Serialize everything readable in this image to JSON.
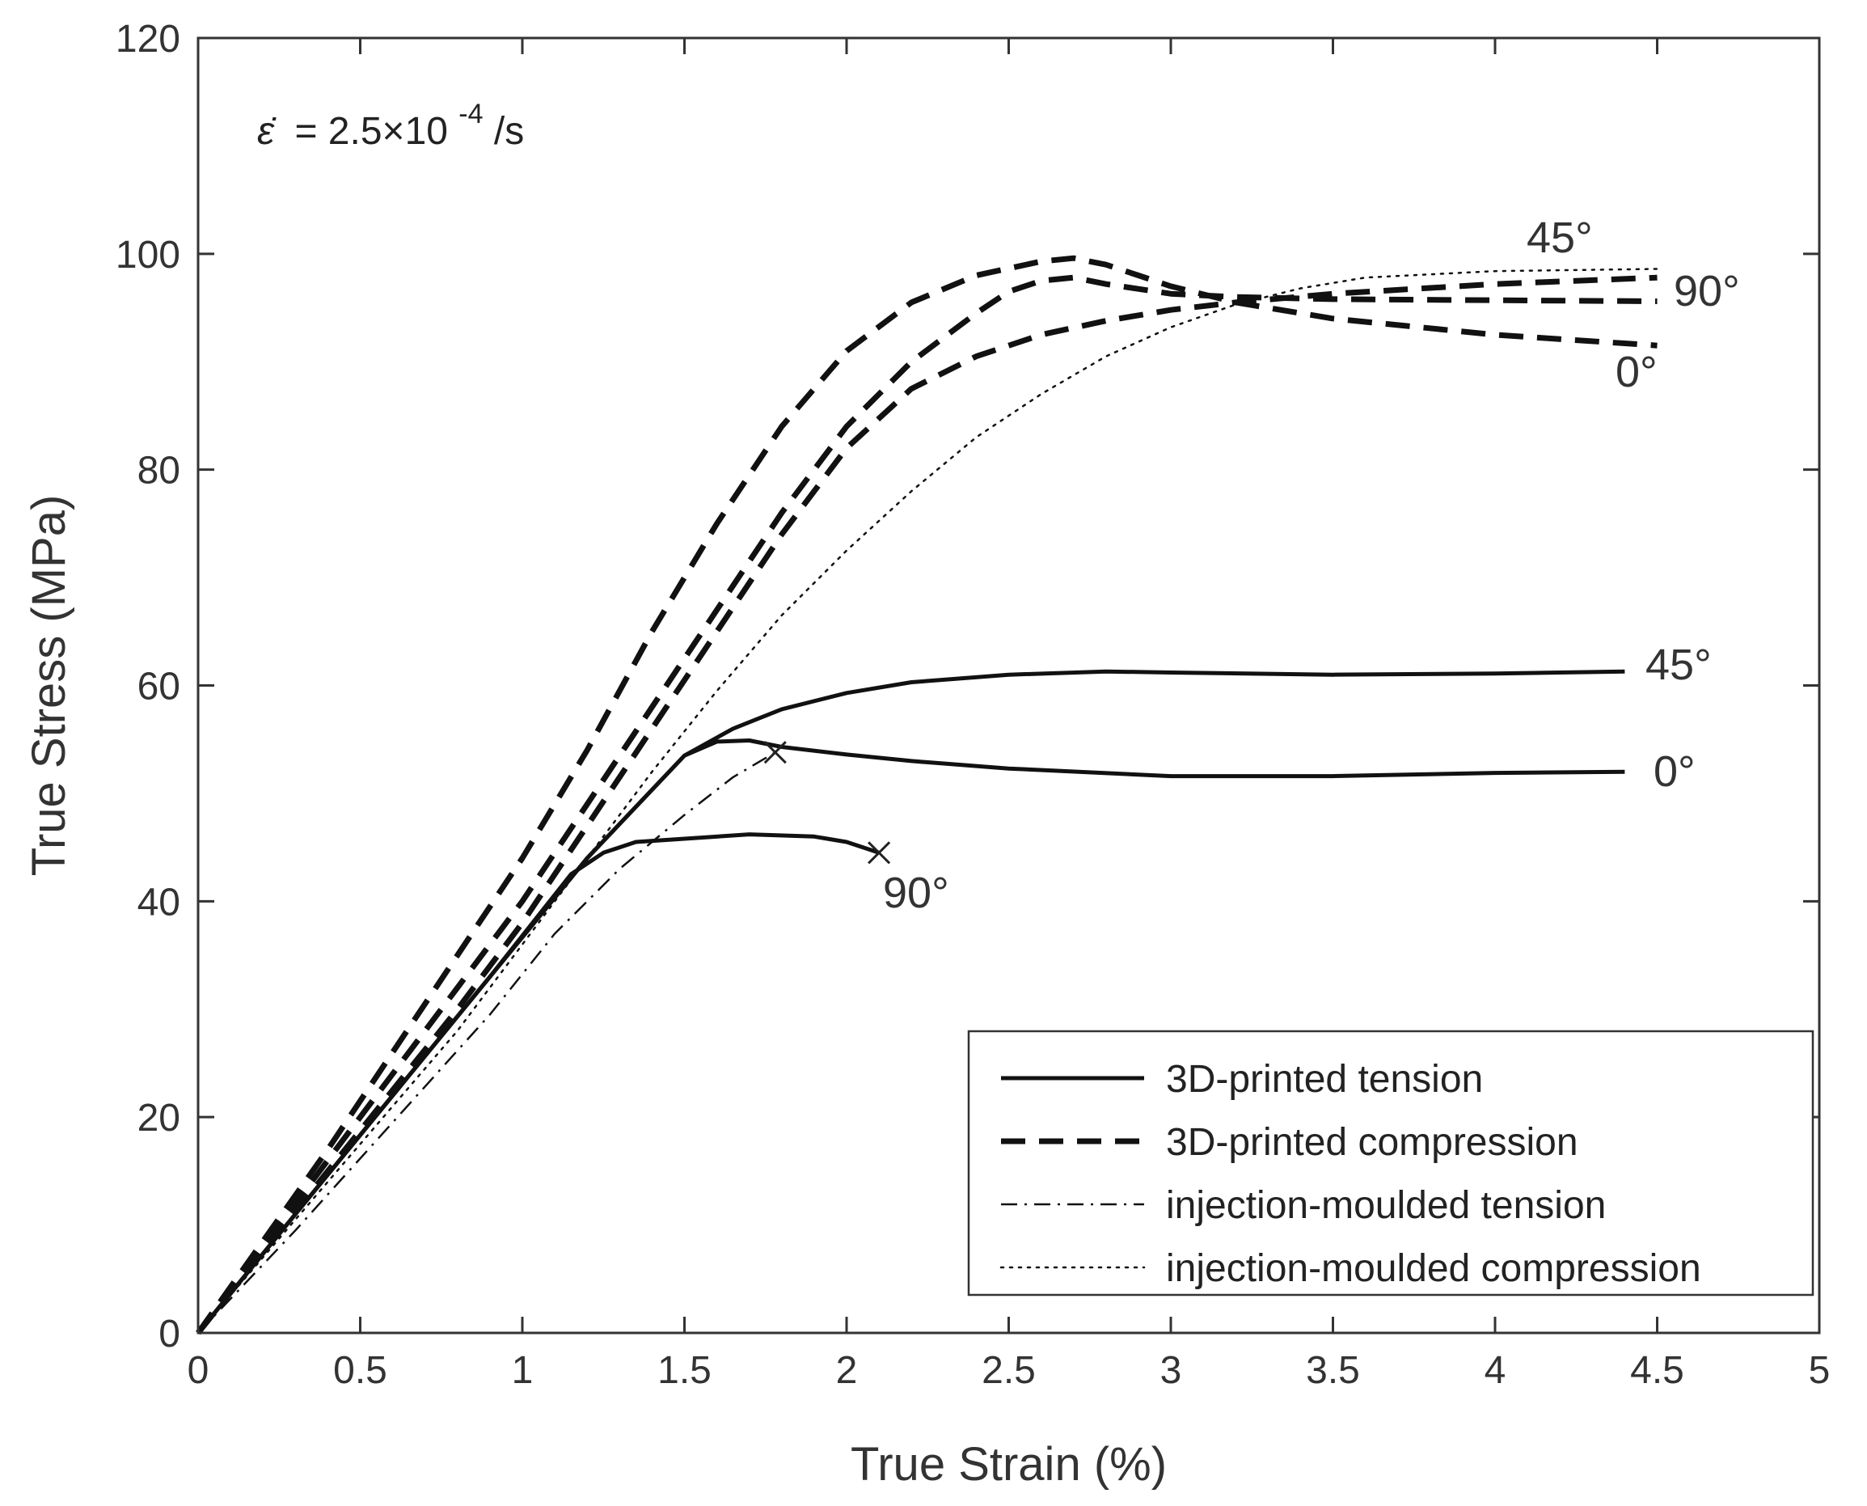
{
  "chart_data": {
    "type": "line",
    "xlabel": "True Strain (%)",
    "ylabel": "True Stress (MPa)",
    "xlim": [
      0,
      5
    ],
    "ylim": [
      0,
      120
    ],
    "xticks": [
      0,
      0.5,
      1,
      1.5,
      2,
      2.5,
      3,
      3.5,
      4,
      4.5,
      5
    ],
    "xtick_labels": [
      "0",
      "0.5",
      "1",
      "1.5",
      "2",
      "2.5",
      "3",
      "3.5",
      "4",
      "4.5",
      "5"
    ],
    "yticks": [
      0,
      20,
      40,
      60,
      80,
      100,
      120
    ],
    "ytick_labels": [
      "0",
      "20",
      "40",
      "60",
      "80",
      "100",
      "120"
    ],
    "grid": false,
    "annotation": {
      "symbol": "ε̇",
      "text": "= 2.5×10",
      "exponent": "-4",
      "unit": "/s"
    },
    "legend": {
      "position": "bottom-right",
      "entries": [
        {
          "label": "3D-printed tension",
          "style": "solid"
        },
        {
          "label": "3D-printed compression",
          "style": "dashed"
        },
        {
          "label": "injection-moulded tension",
          "style": "dashdot"
        },
        {
          "label": "injection-moulded compression",
          "style": "dotted"
        }
      ]
    },
    "series": [
      {
        "name": "3D-printed tension 45°",
        "style": "solid",
        "label": "45°",
        "x": [
          0,
          0.3,
          0.6,
          0.9,
          1.2,
          1.5,
          1.65,
          1.8,
          2.0,
          2.2,
          2.5,
          2.8,
          3.0,
          3.5,
          4.0,
          4.4
        ],
        "y": [
          0,
          11,
          22,
          33,
          44,
          53.5,
          56,
          57.8,
          59.3,
          60.3,
          61,
          61.3,
          61.2,
          61,
          61.1,
          61.3
        ]
      },
      {
        "name": "3D-printed tension 0°",
        "style": "solid",
        "label": "0°",
        "x": [
          0,
          0.3,
          0.6,
          0.9,
          1.2,
          1.5,
          1.6,
          1.7,
          1.8,
          2.0,
          2.2,
          2.5,
          3.0,
          3.5,
          4.0,
          4.4
        ],
        "y": [
          0,
          11,
          22,
          33,
          44,
          53.5,
          54.8,
          54.9,
          54.3,
          53.6,
          53,
          52.3,
          51.6,
          51.6,
          51.9,
          52
        ]
      },
      {
        "name": "3D-printed tension 90°",
        "style": "solid",
        "label": "90°",
        "break_mark": true,
        "x": [
          0,
          0.3,
          0.6,
          0.9,
          1.15,
          1.25,
          1.35,
          1.5,
          1.7,
          1.9,
          2.0,
          2.1
        ],
        "y": [
          0,
          11,
          22,
          33,
          42.5,
          44.5,
          45.5,
          45.8,
          46.2,
          46,
          45.5,
          44.5
        ]
      },
      {
        "name": "3D-printed compression 0°",
        "style": "dashed",
        "label": "0°",
        "x": [
          0,
          0.4,
          0.8,
          1.0,
          1.2,
          1.4,
          1.6,
          1.8,
          2.0,
          2.2,
          2.4,
          2.6,
          2.7,
          2.8,
          2.9,
          3.0,
          3.2,
          3.5,
          4.0,
          4.5
        ],
        "y": [
          0,
          17,
          35,
          44,
          54,
          65,
          75,
          84,
          91,
          95.5,
          98,
          99.3,
          99.6,
          99,
          98,
          97,
          95.5,
          94,
          92.5,
          91.5
        ]
      },
      {
        "name": "3D-printed compression 90°",
        "style": "dashed",
        "label": "90°",
        "x": [
          0,
          0.4,
          0.8,
          1.0,
          1.2,
          1.4,
          1.6,
          1.8,
          2.0,
          2.2,
          2.4,
          2.5,
          2.6,
          2.7,
          2.8,
          3.0,
          3.2,
          3.5,
          4.0,
          4.5
        ],
        "y": [
          0,
          16,
          32,
          40,
          49,
          58,
          67,
          76,
          84,
          90,
          94.5,
          96.5,
          97.5,
          97.8,
          97.2,
          96.3,
          96,
          95.8,
          95.7,
          95.6
        ]
      },
      {
        "name": "3D-printed compression 45°",
        "style": "dashed",
        "label": "45°",
        "x": [
          0,
          0.4,
          0.8,
          1.0,
          1.2,
          1.4,
          1.6,
          1.8,
          2.0,
          2.2,
          2.4,
          2.6,
          2.8,
          3.0,
          3.2,
          3.5,
          4.0,
          4.5
        ],
        "y": [
          0,
          15,
          30,
          38,
          47,
          56,
          65,
          74,
          82,
          87.5,
          90.5,
          92.5,
          93.8,
          94.8,
          95.5,
          96.3,
          97.2,
          97.8
        ]
      },
      {
        "name": "injection-moulded tension",
        "style": "dashdot",
        "break_mark": true,
        "x": [
          0,
          0.3,
          0.6,
          0.9,
          1.1,
          1.3,
          1.5,
          1.65,
          1.78
        ],
        "y": [
          0,
          9.5,
          19.5,
          29.5,
          37,
          43,
          48,
          51.5,
          53.8
        ]
      },
      {
        "name": "injection-moulded compression",
        "style": "dotted",
        "x": [
          0,
          0.4,
          0.8,
          1.0,
          1.2,
          1.4,
          1.6,
          1.8,
          2.0,
          2.2,
          2.4,
          2.6,
          2.8,
          3.0,
          3.2,
          3.4,
          3.6,
          4.0,
          4.5
        ],
        "y": [
          0,
          14,
          28,
          36,
          44,
          52,
          59.5,
          66.5,
          72.5,
          78,
          83,
          87,
          90.5,
          93.2,
          95.3,
          96.8,
          97.8,
          98.4,
          98.6
        ]
      }
    ]
  }
}
